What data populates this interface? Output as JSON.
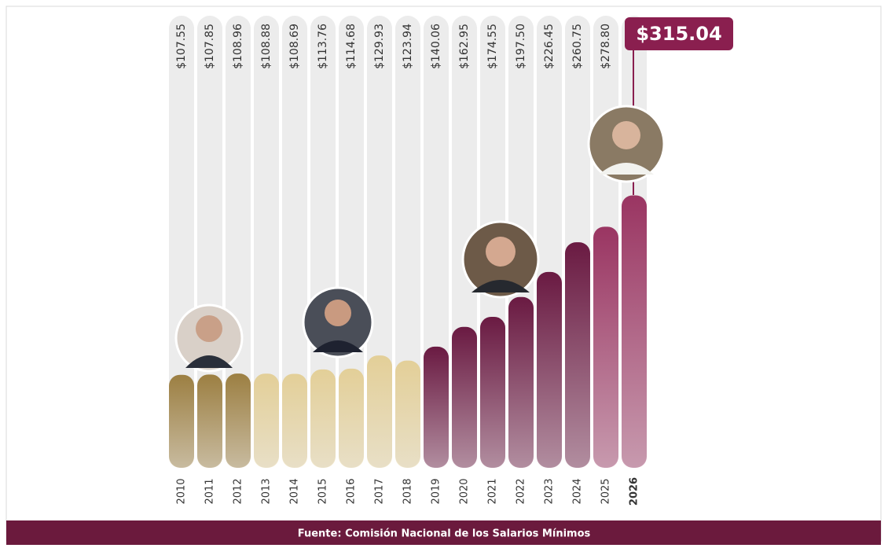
{
  "chart_data": {
    "type": "bar",
    "categories": [
      "2010",
      "2011",
      "2012",
      "2013",
      "2014",
      "2015",
      "2016",
      "2017",
      "2018",
      "2019",
      "2020",
      "2021",
      "2022",
      "2023",
      "2024",
      "2025",
      "2026"
    ],
    "values": [
      107.55,
      107.85,
      108.96,
      108.88,
      108.69,
      113.76,
      114.68,
      129.93,
      123.94,
      140.06,
      162.95,
      174.55,
      197.5,
      226.45,
      260.75,
      278.8,
      315.04
    ],
    "value_labels": [
      "$107.55",
      "$107.85",
      "$108.96",
      "$108.88",
      "$108.69",
      "$113.76",
      "$114.68",
      "$129.93",
      "$123.94",
      "$140.06",
      "$162.95",
      "$174.55",
      "$197.50",
      "$226.45",
      "$260.75",
      "$278.80",
      "$315.04"
    ],
    "colors": [
      "#9c7f42",
      "#9c7f42",
      "#9c7f42",
      "#e3cf98",
      "#e3cf98",
      "#e3cf98",
      "#e3cf98",
      "#e3cf98",
      "#e3cf98",
      "#6a1a42",
      "#6a1a42",
      "#6a1a42",
      "#6a1a42",
      "#6a1a42",
      "#6a1a42",
      "#9a3562",
      "#9a3562"
    ],
    "ylim": [
      0,
      330
    ],
    "source": "Fuente: Comisión Nacional de los Salarios Mínimos"
  }
}
